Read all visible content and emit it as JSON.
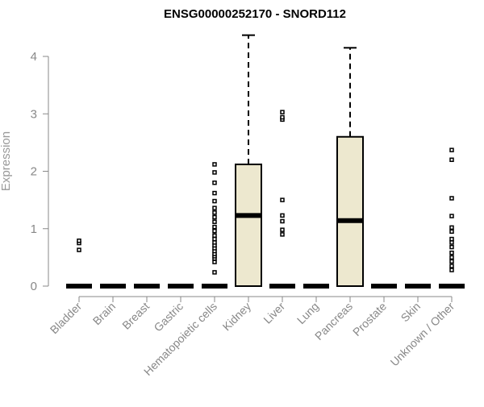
{
  "chart_data": {
    "type": "boxplot",
    "title": "ENSG00000252170 - SNORD112",
    "ylabel": "Expression",
    "xlabel": "",
    "ylim": [
      0,
      4.4
    ],
    "y_ticks": [
      0,
      1,
      2,
      3,
      4
    ],
    "box_fill": "#EDE8CF",
    "line_color": "#000000",
    "categories": [
      "Bladder",
      "Brain",
      "Breast",
      "Gastric",
      "Hematopoietic cells",
      "Kidney",
      "Liver",
      "Lung",
      "Pancreas",
      "Prostate",
      "Skin",
      "Unknown / Other"
    ],
    "boxes": [
      {
        "category": "Bladder",
        "q1": 0,
        "median": 0,
        "q3": 0,
        "whisker_low": 0,
        "whisker_high": 0,
        "outliers": [
          0.63,
          0.75,
          0.79
        ]
      },
      {
        "category": "Brain",
        "q1": 0,
        "median": 0,
        "q3": 0,
        "whisker_low": 0,
        "whisker_high": 0,
        "outliers": []
      },
      {
        "category": "Breast",
        "q1": 0,
        "median": 0,
        "q3": 0,
        "whisker_low": 0,
        "whisker_high": 0,
        "outliers": []
      },
      {
        "category": "Gastric",
        "q1": 0,
        "median": 0,
        "q3": 0,
        "whisker_low": 0,
        "whisker_high": 0,
        "outliers": []
      },
      {
        "category": "Hematopoietic cells",
        "q1": 0,
        "median": 0,
        "q3": 0,
        "whisker_low": 0,
        "whisker_high": 0,
        "outliers": [
          0.24,
          0.42,
          0.48,
          0.52,
          0.56,
          0.61,
          0.66,
          0.71,
          0.76,
          0.82,
          0.88,
          0.96,
          1.03,
          1.12,
          1.2,
          1.28,
          1.36,
          1.48,
          1.62,
          1.8,
          1.98,
          2.12
        ]
      },
      {
        "category": "Kidney",
        "q1": 0,
        "median": 1.23,
        "q3": 2.12,
        "whisker_low": 0,
        "whisker_high": 4.37,
        "outliers": []
      },
      {
        "category": "Liver",
        "q1": 0,
        "median": 0,
        "q3": 0,
        "whisker_low": 0,
        "whisker_high": 0,
        "outliers": [
          0.9,
          0.98,
          1.13,
          1.23,
          1.5,
          2.9,
          2.94,
          3.03
        ]
      },
      {
        "category": "Lung",
        "q1": 0,
        "median": 0,
        "q3": 0,
        "whisker_low": 0,
        "whisker_high": 0,
        "outliers": []
      },
      {
        "category": "Pancreas",
        "q1": 0,
        "median": 1.14,
        "q3": 2.6,
        "whisker_low": 0,
        "whisker_high": 4.15,
        "outliers": []
      },
      {
        "category": "Prostate",
        "q1": 0,
        "median": 0,
        "q3": 0,
        "whisker_low": 0,
        "whisker_high": 0,
        "outliers": []
      },
      {
        "category": "Skin",
        "q1": 0,
        "median": 0,
        "q3": 0,
        "whisker_low": 0,
        "whisker_high": 0,
        "outliers": []
      },
      {
        "category": "Unknown / Other",
        "q1": 0,
        "median": 0,
        "q3": 0,
        "whisker_low": 0,
        "whisker_high": 0,
        "outliers": [
          0.28,
          0.35,
          0.43,
          0.5,
          0.58,
          0.68,
          0.76,
          0.82,
          0.95,
          1.02,
          1.22,
          1.53,
          2.2,
          2.37
        ]
      }
    ]
  }
}
